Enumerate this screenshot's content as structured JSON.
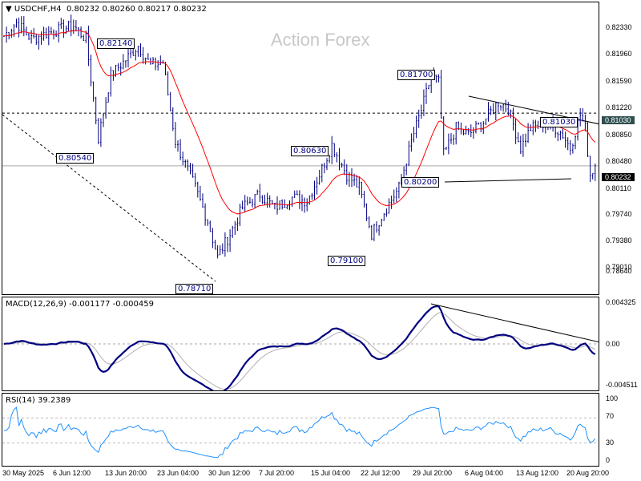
{
  "header": {
    "symbol": "USDCHF,H4",
    "ohlc": "0.80232 0.80260 0.80217 0.80232",
    "watermark": "Action Forex"
  },
  "price_axis": [
    "0.82330",
    "0.81960",
    "0.81590",
    "0.81220",
    "0.80850",
    "0.80480",
    "0.80110",
    "0.79740",
    "0.79380",
    "0.79010",
    "0.78640"
  ],
  "price_tags": {
    "level": "0.81030",
    "current": "0.80232"
  },
  "annotations": [
    "0.82140",
    "0.80540",
    "0.78710",
    "0.80630",
    "0.79100",
    "0.81700",
    "0.80200",
    "0.81030"
  ],
  "macd": {
    "title": "MACD(12,26,9) -0.001177 -0.000459",
    "axis": [
      "0.004325",
      "0.00",
      "-0.004511"
    ]
  },
  "rsi": {
    "title": "RSI(14) 39.2389",
    "axis": [
      "100",
      "70",
      "30",
      "0"
    ]
  },
  "time_axis": [
    "30 May 2025",
    "6 Jun 12:00",
    "13 Jun 20:00",
    "23 Jun 04:00",
    "30 Jun 12:00",
    "7 Jul 20:00",
    "15 Jul 04:00",
    "22 Jul 12:00",
    "29 Jul 20:00",
    "6 Aug 04:00",
    "13 Aug 12:00",
    "20 Aug 20:00"
  ],
  "colors": {
    "bars": "#000080",
    "ma": "#ff0000",
    "macd": "#000080",
    "signal": "#b0b0b0",
    "rsi": "#1e90ff",
    "tag_level": "#2f4f4f"
  },
  "chart_data": {
    "type": "line",
    "title": "USDCHF H4",
    "ylim": [
      0.7864,
      0.8233
    ],
    "anchors": [
      [
        0,
        0.822
      ],
      [
        5,
        0.824
      ],
      [
        11,
        0.8215
      ],
      [
        18,
        0.8225
      ],
      [
        28,
        0.8235
      ],
      [
        33,
        0.8215
      ],
      [
        38,
        0.8065
      ],
      [
        43,
        0.816
      ],
      [
        48,
        0.818
      ],
      [
        54,
        0.8205
      ],
      [
        59,
        0.8175
      ],
      [
        64,
        0.818
      ],
      [
        69,
        0.806
      ],
      [
        77,
        0.799
      ],
      [
        82,
        0.794
      ],
      [
        86,
        0.7885
      ],
      [
        91,
        0.792
      ],
      [
        96,
        0.796
      ],
      [
        103,
        0.798
      ],
      [
        109,
        0.796
      ],
      [
        116,
        0.7975
      ],
      [
        122,
        0.797
      ],
      [
        127,
        0.801
      ],
      [
        132,
        0.8055
      ],
      [
        138,
        0.801
      ],
      [
        143,
        0.799
      ],
      [
        148,
        0.792
      ],
      [
        154,
        0.796
      ],
      [
        159,
        0.799
      ],
      [
        164,
        0.806
      ],
      [
        169,
        0.812
      ],
      [
        172,
        0.816
      ],
      [
        175,
        0.815
      ],
      [
        177,
        0.804
      ],
      [
        182,
        0.808
      ],
      [
        187,
        0.807
      ],
      [
        193,
        0.809
      ],
      [
        199,
        0.812
      ],
      [
        203,
        0.811
      ],
      [
        208,
        0.805
      ],
      [
        212,
        0.808
      ],
      [
        219,
        0.809
      ],
      [
        225,
        0.807
      ],
      [
        228,
        0.805
      ],
      [
        232,
        0.81
      ],
      [
        234,
        0.808
      ],
      [
        236,
        0.801
      ],
      [
        238,
        0.8023
      ]
    ]
  }
}
